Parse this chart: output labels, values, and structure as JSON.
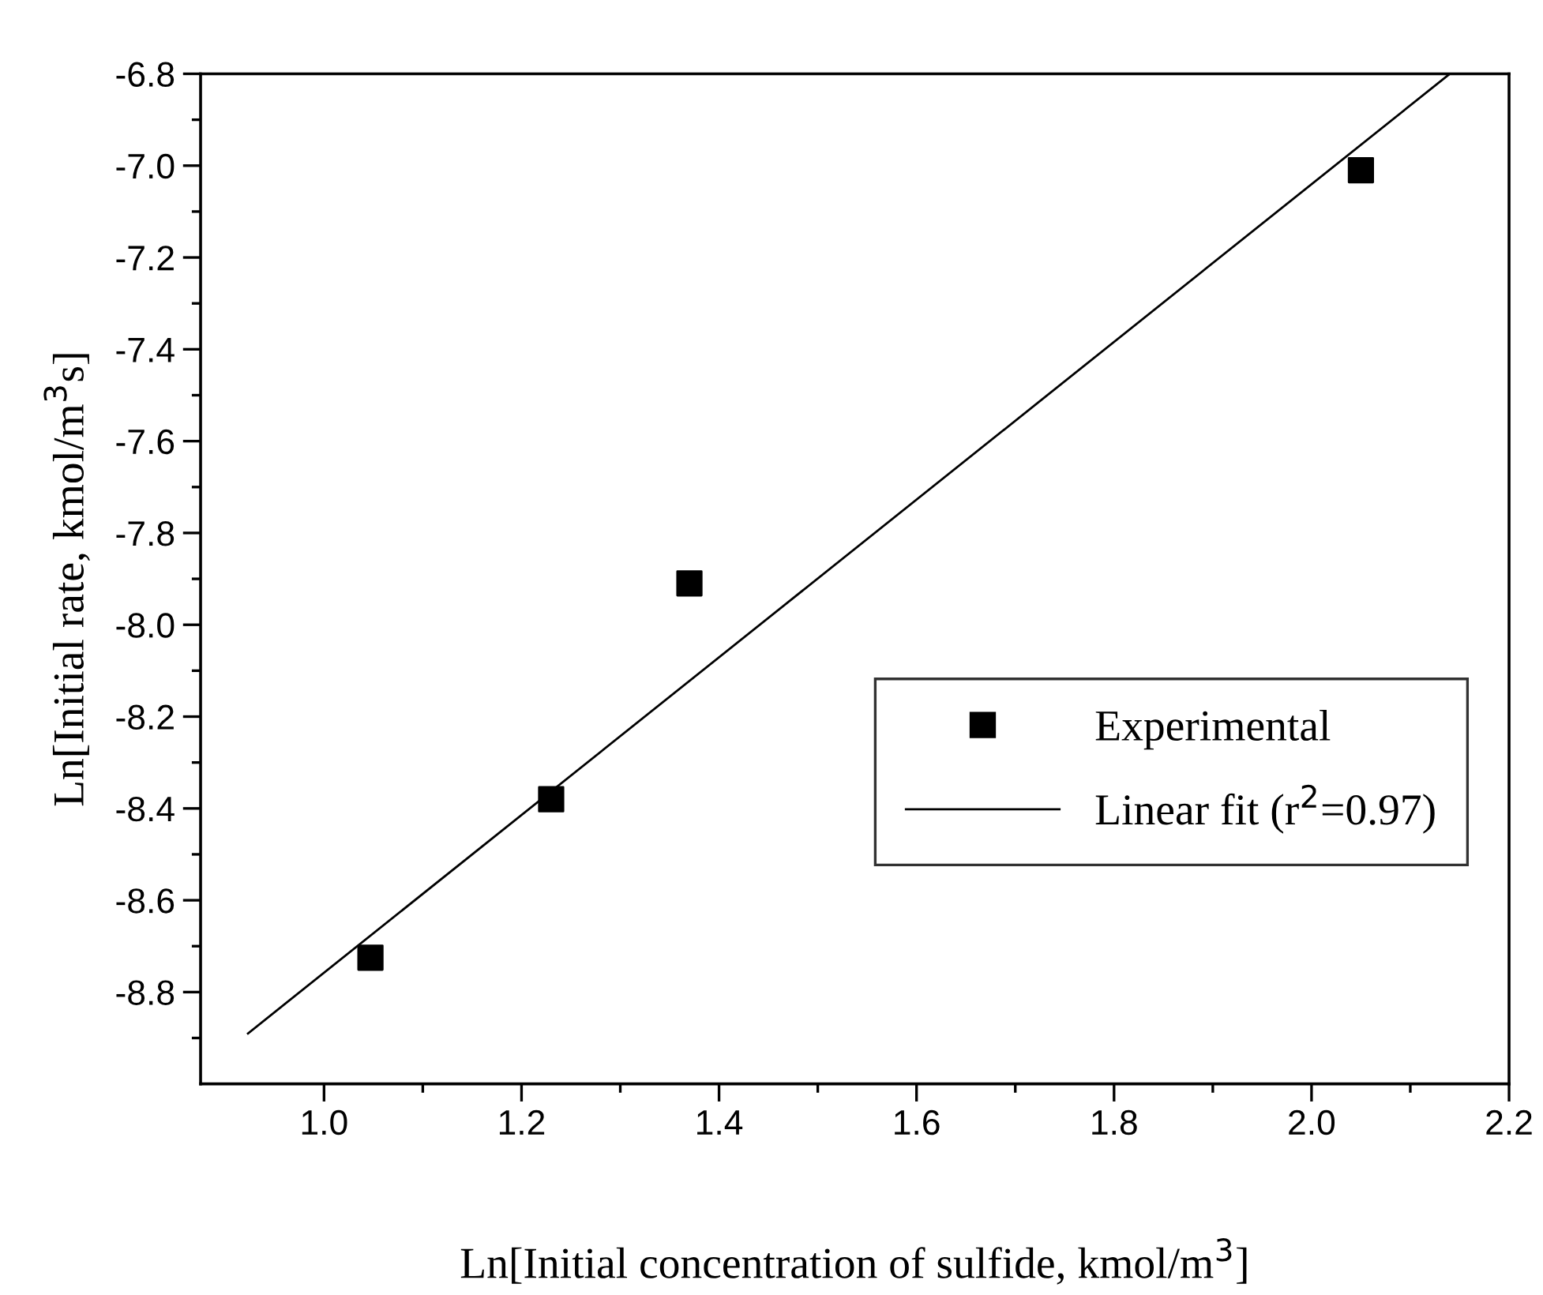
{
  "chart_data": {
    "type": "scatter",
    "xlabel": "Ln[Initial concentration of sulfide, kmol/m$^{3}$]",
    "ylabel": "Ln[Initial rate, kmol/m$^{3}$s]",
    "series": [
      {
        "name": "Experimental",
        "color": "#000000",
        "marker": "square",
        "x": [
          1.047,
          1.23,
          1.37,
          2.05
        ],
        "values": [
          -8.725,
          -8.38,
          -7.91,
          -7.01
        ]
      },
      {
        "name": "Linear fit (r$^{2}$=0.97)",
        "type": "line",
        "color": "#000000",
        "marker": "none",
        "line_style": "solid",
        "x": [
          0.923,
          2.14
        ],
        "values": [
          -8.89,
          -6.8
        ]
      }
    ],
    "xlim": [
      0.875,
      2.2
    ],
    "ylim": [
      -9.0,
      -6.8
    ],
    "xticks": [
      {
        "value": 1,
        "label": "1.0"
      },
      1.2,
      1.4,
      1.6,
      1.8,
      {
        "value": 2,
        "label": "2.0"
      },
      2.2
    ],
    "yticks": [
      -8.8,
      -8.6,
      -8.4,
      -8.2,
      {
        "value": -8,
        "label": "-8.0"
      },
      -7.8,
      -7.6,
      -7.4,
      -7.2,
      {
        "value": -7,
        "label": "-7.0"
      },
      -6.8
    ],
    "grid": false,
    "legend": "bottom right"
  }
}
